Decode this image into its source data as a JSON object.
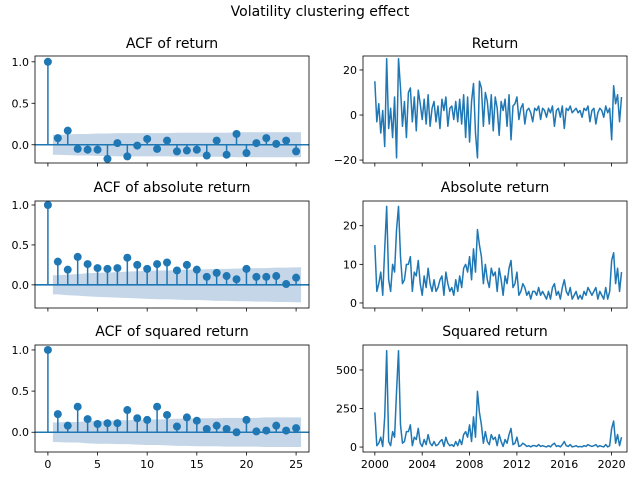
{
  "figure_title": "Volatility clustering effect",
  "colors": {
    "line": "#1f77b4",
    "band": "#b0c8e0"
  },
  "chart_data": [
    {
      "type": "stem",
      "title": "ACF of return",
      "lags": [
        0,
        1,
        2,
        3,
        4,
        5,
        6,
        7,
        8,
        9,
        10,
        11,
        12,
        13,
        14,
        15,
        16,
        17,
        18,
        19,
        20,
        21,
        22,
        23,
        24,
        25
      ],
      "values": [
        1,
        0.08,
        0.17,
        -0.05,
        -0.06,
        -0.06,
        -0.17,
        0.02,
        -0.14,
        -0.01,
        0.07,
        -0.05,
        0.05,
        -0.08,
        -0.07,
        -0.06,
        -0.13,
        0.05,
        -0.12,
        0.13,
        -0.1,
        0.02,
        0.08,
        0.01,
        0.05,
        -0.08
      ],
      "confint": [
        0.12,
        0.125,
        0.13,
        0.13,
        0.135,
        0.135,
        0.14,
        0.14,
        0.14,
        0.14,
        0.14,
        0.14,
        0.145,
        0.145,
        0.145,
        0.145,
        0.145,
        0.145,
        0.15,
        0.15,
        0.15,
        0.15,
        0.15,
        0.15,
        0.15
      ],
      "xlim": [
        -1.3,
        26.3
      ],
      "ylim": [
        -0.22,
        1.07
      ],
      "yticks": [
        "1.0",
        "0.5",
        "0.0"
      ],
      "ytick_values": [
        1,
        0.5,
        0
      ],
      "xticks": [],
      "xtick_values": [
        0,
        5,
        10,
        15,
        20,
        25
      ]
    },
    {
      "type": "line",
      "title": "Return",
      "x_start": 2000,
      "x_step": 0.1667,
      "values": [
        15,
        -3,
        5,
        -8,
        2,
        -14,
        25,
        -6,
        3,
        -10,
        8,
        -19,
        25,
        12,
        -5,
        6,
        -10,
        10,
        12,
        -3,
        8,
        -7,
        11,
        5,
        -2,
        7,
        -4,
        9,
        -5,
        3,
        6,
        -3,
        4,
        -6,
        7,
        2,
        8,
        -5,
        3,
        4,
        -2,
        6,
        -3,
        7,
        -4,
        9,
        -10,
        8,
        -12,
        6,
        14,
        -8,
        -19,
        15,
        12,
        -5,
        10,
        6,
        -4,
        9,
        -7,
        8,
        3,
        -9,
        6,
        2,
        7,
        -5,
        9,
        -11,
        4,
        5,
        8,
        -2,
        3,
        5,
        -4,
        2,
        3,
        1,
        -3,
        3,
        2,
        4,
        -2,
        3,
        2,
        -1,
        3,
        1,
        4,
        -5,
        2,
        3,
        -1,
        4,
        -6,
        3,
        2,
        4,
        1,
        2,
        3,
        1,
        2,
        -1,
        3,
        2,
        4,
        -3,
        2,
        3,
        -4,
        1,
        3,
        2,
        -1,
        4,
        1,
        3,
        -11,
        13,
        5,
        9,
        -3,
        8
      ],
      "transform": "none",
      "xlim": [
        1999.0,
        2021.3
      ],
      "ylim": [
        -21.3,
        26.2
      ],
      "yticks": [
        "20",
        "0",
        "−20"
      ],
      "ytick_values": [
        20,
        0,
        -20
      ],
      "xticks": [],
      "xtick_values": [
        2000,
        2004,
        2008,
        2012,
        2016,
        2020
      ]
    },
    {
      "type": "stem",
      "title": "ACF of absolute return",
      "lags": [
        0,
        1,
        2,
        3,
        4,
        5,
        6,
        7,
        8,
        9,
        10,
        11,
        12,
        13,
        14,
        15,
        16,
        17,
        18,
        19,
        20,
        21,
        22,
        23,
        24,
        25
      ],
      "values": [
        1,
        0.29,
        0.19,
        0.35,
        0.26,
        0.21,
        0.2,
        0.21,
        0.34,
        0.25,
        0.2,
        0.26,
        0.28,
        0.18,
        0.25,
        0.19,
        0.1,
        0.15,
        0.11,
        0.07,
        0.2,
        0.1,
        0.1,
        0.11,
        0.01,
        0.09
      ],
      "confint": [
        0.12,
        0.13,
        0.135,
        0.145,
        0.15,
        0.155,
        0.16,
        0.165,
        0.17,
        0.175,
        0.18,
        0.18,
        0.185,
        0.19,
        0.19,
        0.195,
        0.2,
        0.2,
        0.205,
        0.205,
        0.21,
        0.21,
        0.215,
        0.215,
        0.22
      ],
      "xlim": [
        -1.3,
        26.3
      ],
      "ylim": [
        -0.29,
        1.05
      ],
      "yticks": [
        "1.0",
        "0.5",
        "0.0"
      ],
      "ytick_values": [
        1,
        0.5,
        0
      ],
      "xticks": [],
      "xtick_values": [
        0,
        5,
        10,
        15,
        20,
        25
      ]
    },
    {
      "type": "line",
      "title": "Absolute return",
      "x_start": 2000,
      "x_step": 0.1667,
      "transform": "abs",
      "xlim": [
        1999.0,
        2021.3
      ],
      "ylim": [
        -1.3,
        26.4
      ],
      "yticks": [
        "20",
        "10",
        "0"
      ],
      "ytick_values": [
        20,
        10,
        0
      ],
      "xticks": [],
      "xtick_values": [
        2000,
        2004,
        2008,
        2012,
        2016,
        2020
      ]
    },
    {
      "type": "stem",
      "title": "ACF of squared return",
      "lags": [
        0,
        1,
        2,
        3,
        4,
        5,
        6,
        7,
        8,
        9,
        10,
        11,
        12,
        13,
        14,
        15,
        16,
        17,
        18,
        19,
        20,
        21,
        22,
        23,
        24,
        25
      ],
      "values": [
        1,
        0.22,
        0.08,
        0.31,
        0.16,
        0.1,
        0.11,
        0.11,
        0.27,
        0.17,
        0.15,
        0.31,
        0.21,
        0.07,
        0.18,
        0.14,
        0.04,
        0.08,
        0.04,
        0.0,
        0.15,
        0.01,
        0.02,
        0.08,
        0.02,
        0.05
      ],
      "confint": [
        0.12,
        0.125,
        0.125,
        0.135,
        0.14,
        0.14,
        0.145,
        0.145,
        0.15,
        0.155,
        0.155,
        0.16,
        0.165,
        0.165,
        0.17,
        0.17,
        0.17,
        0.175,
        0.175,
        0.175,
        0.175,
        0.18,
        0.18,
        0.18,
        0.18
      ],
      "xlim": [
        -1.3,
        26.3
      ],
      "ylim": [
        -0.24,
        1.06
      ],
      "yticks": [
        "1.0",
        "0.5",
        "0.0"
      ],
      "ytick_values": [
        1,
        0.5,
        0
      ],
      "xticks": [
        "0",
        "5",
        "10",
        "15",
        "20",
        "25"
      ],
      "xtick_values": [
        0,
        5,
        10,
        15,
        20,
        25
      ]
    },
    {
      "type": "line",
      "title": "Squared return",
      "x_start": 2000,
      "x_step": 0.1667,
      "transform": "square",
      "xlim": [
        1999.0,
        2021.3
      ],
      "ylim": [
        -32,
        662
      ],
      "yticks": [
        "500",
        "250",
        "0"
      ],
      "ytick_values": [
        500,
        250,
        0
      ],
      "xticks": [
        "2000",
        "2004",
        "2008",
        "2012",
        "2016",
        "2020"
      ],
      "xtick_values": [
        2000,
        2004,
        2008,
        2012,
        2016,
        2020
      ]
    }
  ]
}
